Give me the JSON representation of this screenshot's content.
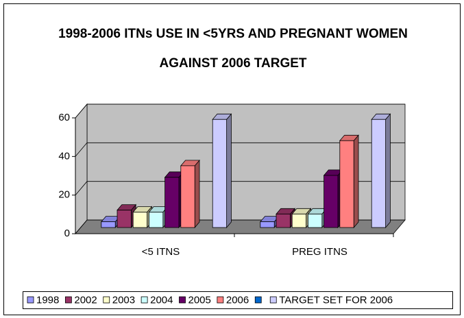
{
  "chart_data": {
    "type": "bar3d",
    "title": "1998-2006 ITNs USE IN <5YRS AND PREGNANT WOMEN AGAINST 2006 TARGET",
    "categories": [
      "<5 ITNS",
      "PREG ITNS"
    ],
    "series": [
      {
        "name": "1998",
        "color": "#9999ff",
        "values": [
          3,
          3
        ]
      },
      {
        "name": "2002",
        "color": "#993366",
        "values": [
          9,
          7
        ]
      },
      {
        "name": "2003",
        "color": "#ffffcc",
        "values": [
          8,
          7
        ]
      },
      {
        "name": "2004",
        "color": "#ccffff",
        "values": [
          8,
          7
        ]
      },
      {
        "name": "2005",
        "color": "#660066",
        "values": [
          26,
          27
        ]
      },
      {
        "name": "2006",
        "color": "#ff8080",
        "values": [
          32,
          45
        ]
      },
      {
        "name": null,
        "color": "#0066cc",
        "values": [
          null,
          null
        ]
      },
      {
        "name": "TARGET SET FOR 2006",
        "color": "#ccccff",
        "values": [
          56,
          56
        ]
      }
    ],
    "ylim": [
      0,
      60
    ],
    "yticks": [
      0,
      20,
      40,
      60
    ],
    "grid": true,
    "legend": "bottom"
  }
}
